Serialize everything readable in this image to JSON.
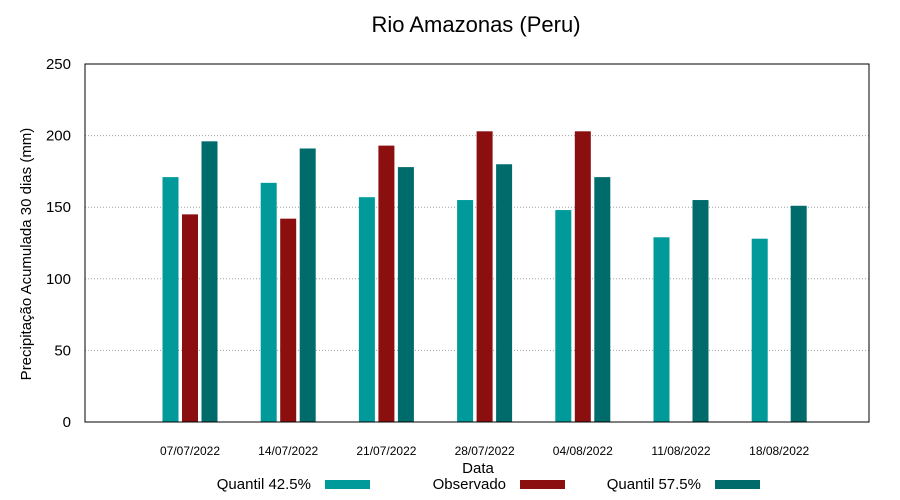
{
  "chart_data": {
    "type": "bar",
    "title": "Rio Amazonas (Peru)",
    "xlabel": "Data",
    "ylabel": "Precipitação Acumulada 30 dias (mm)",
    "ylim": [
      0,
      250
    ],
    "yticks": [
      0,
      50,
      100,
      150,
      200,
      250
    ],
    "grid": true,
    "legend_position": "bottom",
    "categories": [
      "07/07/2022",
      "14/07/2022",
      "21/07/2022",
      "28/07/2022",
      "04/08/2022",
      "11/08/2022",
      "18/08/2022"
    ],
    "series": [
      {
        "name": "Quantil 42.5%",
        "color": "#009a9a",
        "values": [
          171,
          167,
          157,
          155,
          148,
          129,
          128
        ]
      },
      {
        "name": "Observado",
        "color": "#8b0f0f",
        "values": [
          145,
          142,
          193,
          203,
          203,
          null,
          null
        ]
      },
      {
        "name": "Quantil 57.5%",
        "color": "#006b6b",
        "values": [
          196,
          191,
          178,
          180,
          171,
          155,
          151
        ]
      }
    ]
  }
}
